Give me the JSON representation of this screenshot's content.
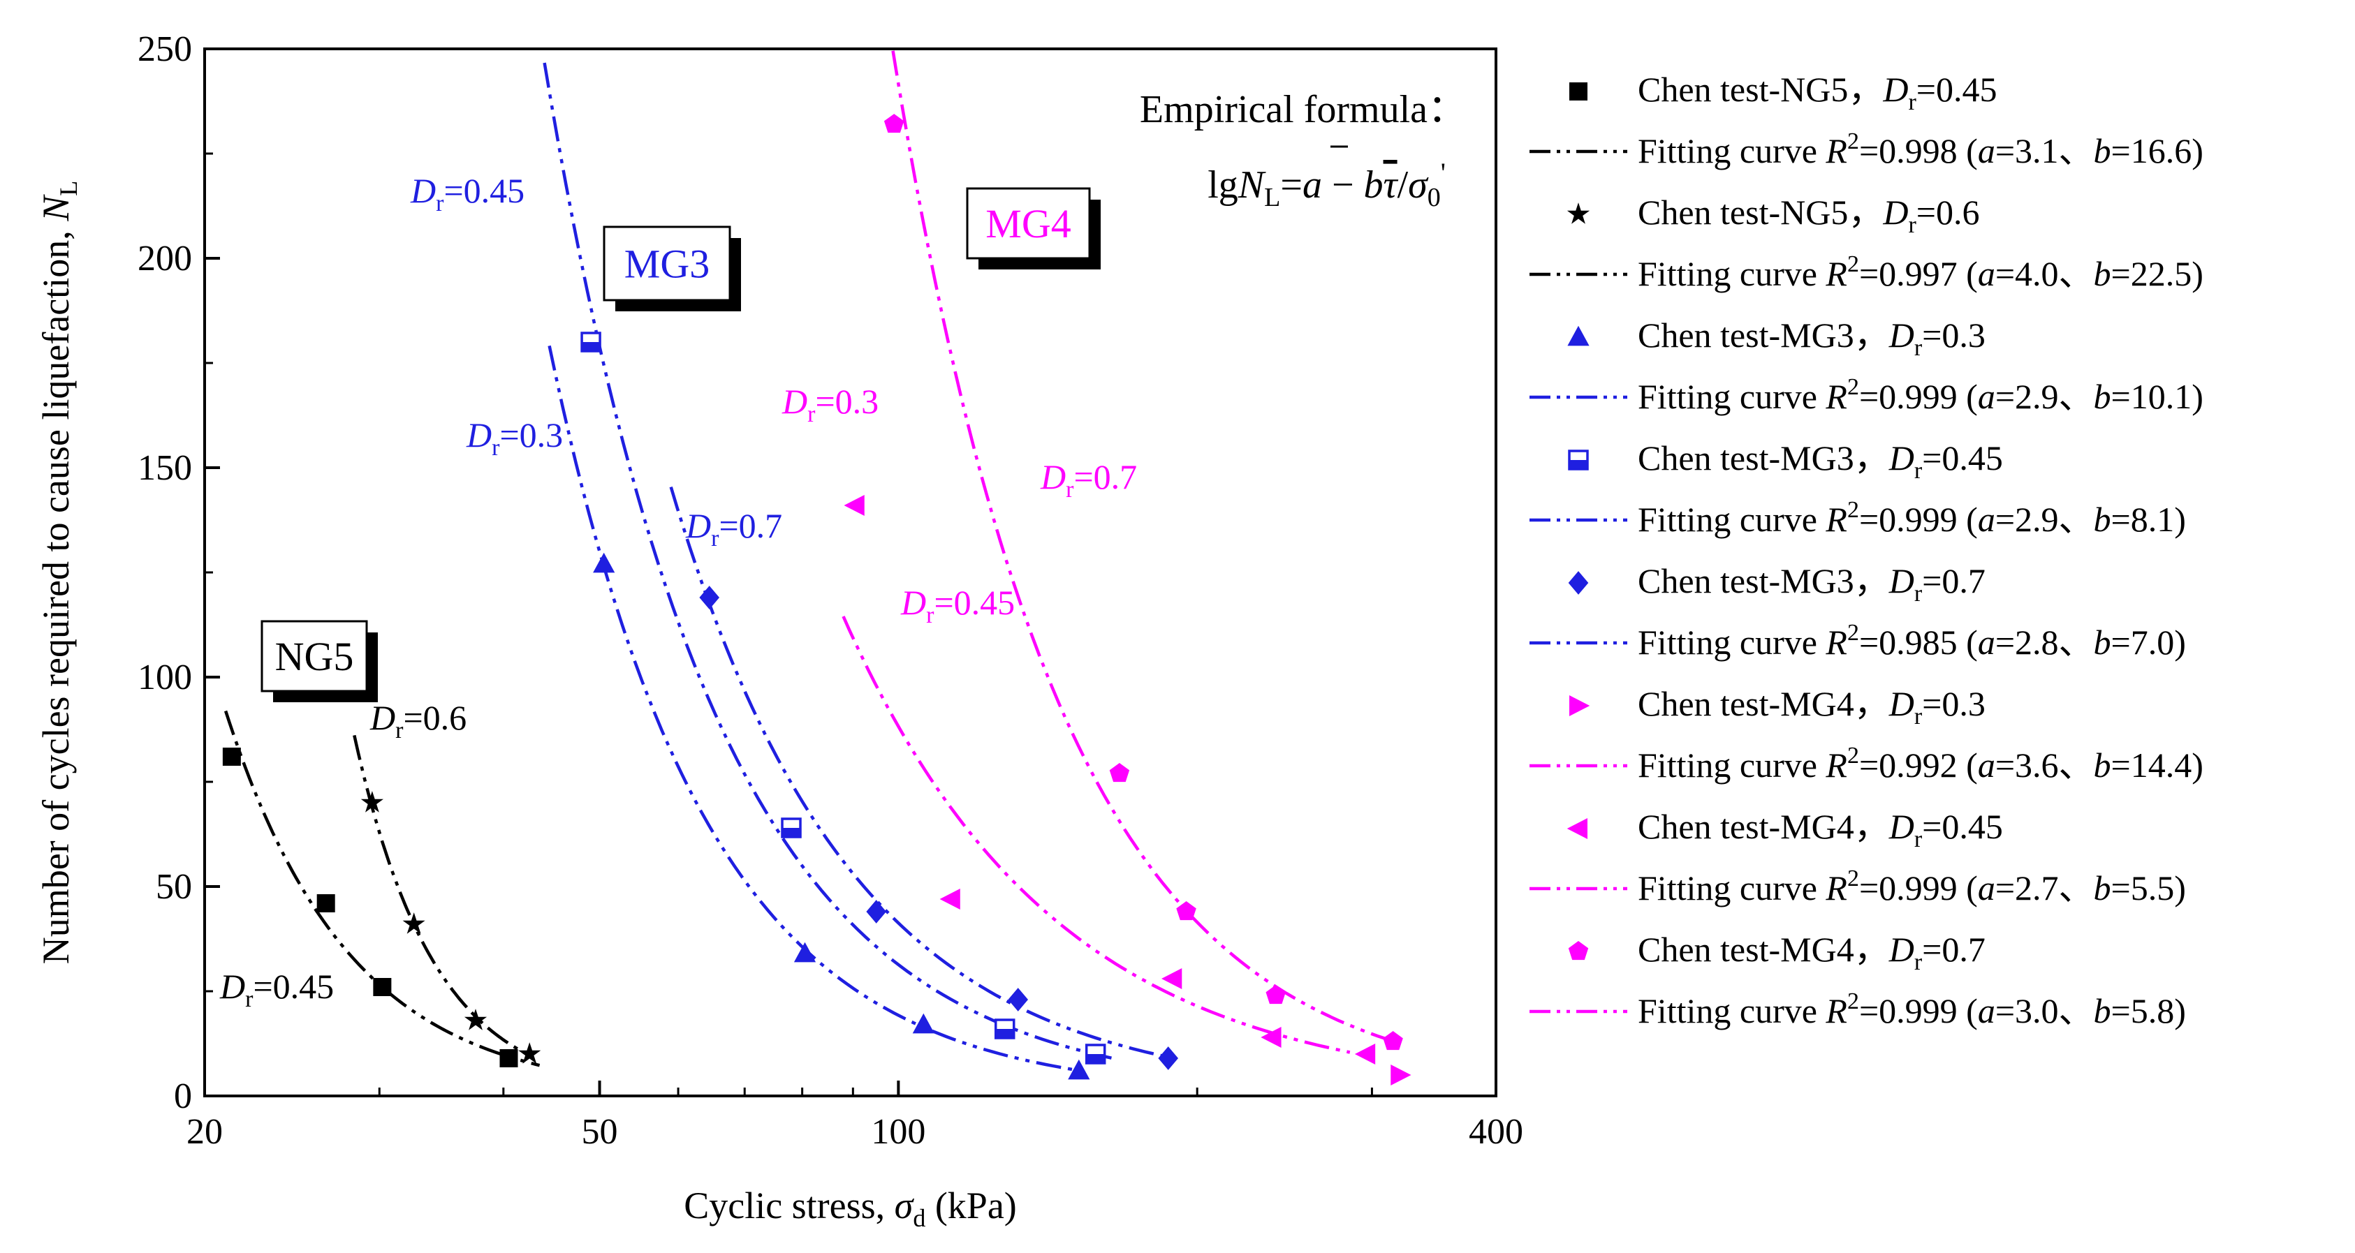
{
  "chart_data": {
    "type": "scatter",
    "x_scale": "log",
    "xlim": [
      20,
      400
    ],
    "ylim": [
      0,
      250
    ],
    "x_ticks": [
      20,
      50,
      100,
      400
    ],
    "y_ticks": [
      0,
      50,
      100,
      150,
      200,
      250
    ],
    "x_tick_labels": [
      "20",
      "50",
      "100",
      "400"
    ],
    "y_tick_labels": [
      "0",
      "50",
      "100",
      "150",
      "200",
      "250"
    ],
    "xlabel": {
      "main": "Cyclic stress, ",
      "sym": "σ",
      "sub": "d",
      "unit": " (kPa)"
    },
    "ylabel": {
      "main": "Number of cycles required to cause liquefaction, ",
      "sym": "N",
      "sub": "L"
    },
    "formula": {
      "title": "Empirical formula：",
      "lg": "lg",
      "N": "N",
      "L": "L",
      "eq": "=",
      "a": "a",
      "minus": " − ",
      "b": "b",
      "tau": "τ",
      "slash": "/",
      "sigma": "σ",
      "zero": "0",
      "prime": "'"
    },
    "boxes": [
      {
        "text": "NG5",
        "color": "#000000"
      },
      {
        "text": "MG3",
        "color": "#1f1fe0"
      },
      {
        "text": "MG4",
        "color": "#ff00ff"
      }
    ],
    "curve_labels": [
      {
        "sym": "D",
        "sub": "r",
        "value": "=0.45",
        "color": "#1f1fe0"
      },
      {
        "sym": "D",
        "sub": "r",
        "value": "=0.3",
        "color": "#1f1fe0"
      },
      {
        "sym": "D",
        "sub": "r",
        "value": "=0.7",
        "color": "#1f1fe0"
      },
      {
        "sym": "D",
        "sub": "r",
        "value": "=0.3",
        "color": "#ff00ff"
      },
      {
        "sym": "D",
        "sub": "r",
        "value": "=0.45",
        "color": "#ff00ff"
      },
      {
        "sym": "D",
        "sub": "r",
        "value": "=0.7",
        "color": "#ff00ff"
      },
      {
        "sym": "D",
        "sub": "r",
        "value": "=0.6",
        "color": "#000000"
      },
      {
        "sym": "D",
        "sub": "r",
        "value": "=0.45",
        "color": "#000000"
      }
    ],
    "series": [
      {
        "name": "Chen test-NG5，Dr=0.45",
        "color": "#000000",
        "marker": "square",
        "x": [
          21.3,
          26.5,
          30.2,
          40.5
        ],
        "y": [
          81,
          46,
          26,
          9
        ],
        "fit": {
          "a": 3.1,
          "b": 16.6,
          "r2": 0.998,
          "label": "Fitting curve R2=0.998 (a=3.1、b=16.6)",
          "x_range": [
            21,
            43.5
          ]
        }
      },
      {
        "name": "Chen test-NG5，Dr=0.6",
        "color": "#000000",
        "marker": "star",
        "x": [
          29.5,
          32.5,
          37.5,
          42.5
        ],
        "y": [
          70,
          41,
          18,
          10
        ],
        "fit": {
          "a": 4.0,
          "b": 22.5,
          "r2": 0.997,
          "label": "Fitting curve R2=0.997 (a=4.0、b=22.5)",
          "x_range": [
            28.3,
            42.5
          ]
        }
      },
      {
        "name": "Chen test-MG3，Dr=0.3",
        "color": "#1f1fe0",
        "marker": "triangle-up",
        "x": [
          50.5,
          80.5,
          106,
          152
        ],
        "y": [
          127,
          34,
          17,
          6
        ],
        "fit": {
          "a": 2.9,
          "b": 10.1,
          "r2": 0.999,
          "label": "Fitting curve R2=0.999 (a=2.9、b=10.1)",
          "x_range": [
            44.5,
            152
          ]
        }
      },
      {
        "name": "Chen test-MG3，Dr=0.45",
        "color": "#1f1fe0",
        "marker": "square-half",
        "x": [
          49,
          78,
          128,
          158
        ],
        "y": [
          180,
          64,
          16,
          10
        ],
        "fit": {
          "a": 2.9,
          "b": 8.1,
          "r2": 0.999,
          "label": "Fitting curve R2=0.999 (a=2.9、b=8.1)",
          "x_range": [
            44,
            165
          ]
        }
      },
      {
        "name": "Chen test-MG3，Dr=0.7",
        "color": "#1f1fe0",
        "marker": "diamond",
        "x": [
          64.5,
          95,
          132,
          187
        ],
        "y": [
          119,
          44,
          23,
          9
        ],
        "fit": {
          "a": 2.8,
          "b": 7.0,
          "r2": 0.985,
          "label": "Fitting curve R2=0.985 (a=2.8、b=7.0)",
          "x_range": [
            59,
            188
          ]
        }
      },
      {
        "name": "Chen test-MG4，Dr=0.3",
        "color": "#ff00ff",
        "marker": "triangle-right",
        "x": [
          320
        ],
        "y": [
          5
        ],
        "fit": {
          "a": 3.6,
          "b": 14.4,
          "r2": 0.992,
          "label": "Fitting curve R2=0.992 (a=3.6、b=14.4)",
          "x_range": [
            305,
            315
          ]
        }
      },
      {
        "name": "Chen test-MG4，Dr=0.45",
        "color": "#ff00ff",
        "marker": "triangle-left",
        "x": [
          90.5,
          113,
          189,
          238,
          296
        ],
        "y": [
          141,
          47,
          28,
          14,
          10
        ],
        "fit": {
          "a": 2.7,
          "b": 5.5,
          "r2": 0.999,
          "label": "Fitting curve R2=0.999 (a=2.7、b=5.5)",
          "x_range": [
            88,
            285
          ]
        }
      },
      {
        "name": "Chen test-MG4，Dr=0.7",
        "color": "#ff00ff",
        "marker": "pentagon",
        "x": [
          99,
          167,
          195,
          240,
          315
        ],
        "y": [
          232,
          77,
          44,
          24,
          13
        ],
        "fit": {
          "a": 3.0,
          "b": 5.8,
          "r2": 0.999,
          "label": "Fitting curve R2=0.999 (a=3.0、b=5.8)",
          "x_range": [
            95,
            318
          ]
        }
      }
    ]
  }
}
